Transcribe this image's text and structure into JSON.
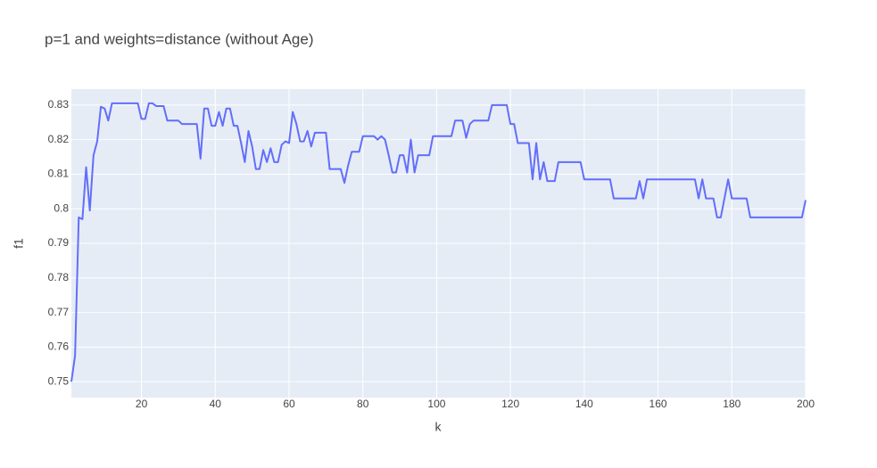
{
  "chart_data": {
    "type": "line",
    "title": "p=1 and weights=distance (without Age)",
    "x_label": "k",
    "y_label": "f1",
    "grid": true,
    "xlim": [
      1,
      200
    ],
    "ylim": [
      0.7454,
      0.8346
    ],
    "xticks": [
      20,
      40,
      60,
      80,
      100,
      120,
      140,
      160,
      180,
      200
    ],
    "yticks": [
      0.75,
      0.76,
      0.77,
      0.78,
      0.79,
      0.8,
      0.81,
      0.82,
      0.83
    ],
    "x": [
      1,
      2,
      3,
      4,
      5,
      6,
      7,
      8,
      9,
      10,
      11,
      12,
      13,
      14,
      15,
      16,
      17,
      18,
      19,
      20,
      21,
      22,
      23,
      24,
      25,
      26,
      27,
      28,
      29,
      30,
      31,
      32,
      33,
      34,
      35,
      36,
      37,
      38,
      39,
      40,
      41,
      42,
      43,
      44,
      45,
      46,
      47,
      48,
      49,
      50,
      51,
      52,
      53,
      54,
      55,
      56,
      57,
      58,
      59,
      60,
      61,
      62,
      63,
      64,
      65,
      66,
      67,
      68,
      69,
      70,
      71,
      72,
      73,
      74,
      75,
      76,
      77,
      78,
      79,
      80,
      81,
      82,
      83,
      84,
      85,
      86,
      87,
      88,
      89,
      90,
      91,
      92,
      93,
      94,
      95,
      96,
      97,
      98,
      99,
      100,
      101,
      102,
      103,
      104,
      105,
      106,
      107,
      108,
      109,
      110,
      111,
      112,
      113,
      114,
      115,
      116,
      117,
      118,
      119,
      120,
      121,
      122,
      123,
      124,
      125,
      126,
      127,
      128,
      129,
      130,
      131,
      132,
      133,
      134,
      135,
      136,
      137,
      138,
      139,
      140,
      141,
      142,
      143,
      144,
      145,
      146,
      147,
      148,
      149,
      150,
      151,
      152,
      153,
      154,
      155,
      156,
      157,
      158,
      159,
      160,
      161,
      162,
      163,
      164,
      165,
      166,
      167,
      168,
      169,
      170,
      171,
      172,
      173,
      174,
      175,
      176,
      177,
      178,
      179,
      180,
      181,
      182,
      183,
      184,
      185,
      186,
      187,
      188,
      189,
      190,
      191,
      192,
      193,
      194,
      195,
      196,
      197,
      198,
      199,
      200
    ],
    "series": [
      {
        "color": "#636efa",
        "values": [
          0.75,
          0.7575,
          0.7975,
          0.797,
          0.812,
          0.7995,
          0.8155,
          0.8195,
          0.8295,
          0.829,
          0.8255,
          0.8305,
          0.8305,
          0.8305,
          0.8305,
          0.8305,
          0.8305,
          0.8305,
          0.8305,
          0.826,
          0.826,
          0.8305,
          0.8305,
          0.8297,
          0.8297,
          0.8297,
          0.8255,
          0.8255,
          0.8255,
          0.8255,
          0.8245,
          0.8245,
          0.8245,
          0.8245,
          0.8245,
          0.8145,
          0.829,
          0.829,
          0.824,
          0.824,
          0.828,
          0.824,
          0.829,
          0.829,
          0.824,
          0.824,
          0.819,
          0.8135,
          0.8225,
          0.818,
          0.8115,
          0.8115,
          0.817,
          0.8135,
          0.8175,
          0.8135,
          0.8135,
          0.8185,
          0.8195,
          0.819,
          0.828,
          0.8245,
          0.8195,
          0.8195,
          0.8225,
          0.818,
          0.822,
          0.822,
          0.822,
          0.822,
          0.8115,
          0.8115,
          0.8115,
          0.8115,
          0.8075,
          0.8125,
          0.8165,
          0.8165,
          0.8165,
          0.821,
          0.821,
          0.821,
          0.821,
          0.82,
          0.821,
          0.82,
          0.8155,
          0.8105,
          0.8105,
          0.8155,
          0.8155,
          0.8105,
          0.82,
          0.8105,
          0.8155,
          0.8155,
          0.8155,
          0.8155,
          0.821,
          0.821,
          0.821,
          0.821,
          0.821,
          0.821,
          0.8255,
          0.8255,
          0.8255,
          0.8205,
          0.8245,
          0.8255,
          0.8255,
          0.8255,
          0.8255,
          0.8255,
          0.83,
          0.83,
          0.83,
          0.83,
          0.83,
          0.8245,
          0.8245,
          0.819,
          0.819,
          0.819,
          0.819,
          0.8085,
          0.819,
          0.8085,
          0.8135,
          0.808,
          0.808,
          0.808,
          0.8135,
          0.8135,
          0.8135,
          0.8135,
          0.8135,
          0.8135,
          0.8135,
          0.8085,
          0.8085,
          0.8085,
          0.8085,
          0.8085,
          0.8085,
          0.8085,
          0.8085,
          0.803,
          0.803,
          0.803,
          0.803,
          0.803,
          0.803,
          0.803,
          0.808,
          0.803,
          0.8085,
          0.8085,
          0.8085,
          0.8085,
          0.8085,
          0.8085,
          0.8085,
          0.8085,
          0.8085,
          0.8085,
          0.8085,
          0.8085,
          0.8085,
          0.8085,
          0.803,
          0.8085,
          0.803,
          0.803,
          0.803,
          0.7975,
          0.7975,
          0.803,
          0.8085,
          0.803,
          0.803,
          0.803,
          0.803,
          0.803,
          0.7975,
          0.7975,
          0.7975,
          0.7975,
          0.7975,
          0.7975,
          0.7975,
          0.7975,
          0.7975,
          0.7975,
          0.7975,
          0.7975,
          0.7975,
          0.7975,
          0.7975,
          0.8025
        ]
      }
    ]
  }
}
